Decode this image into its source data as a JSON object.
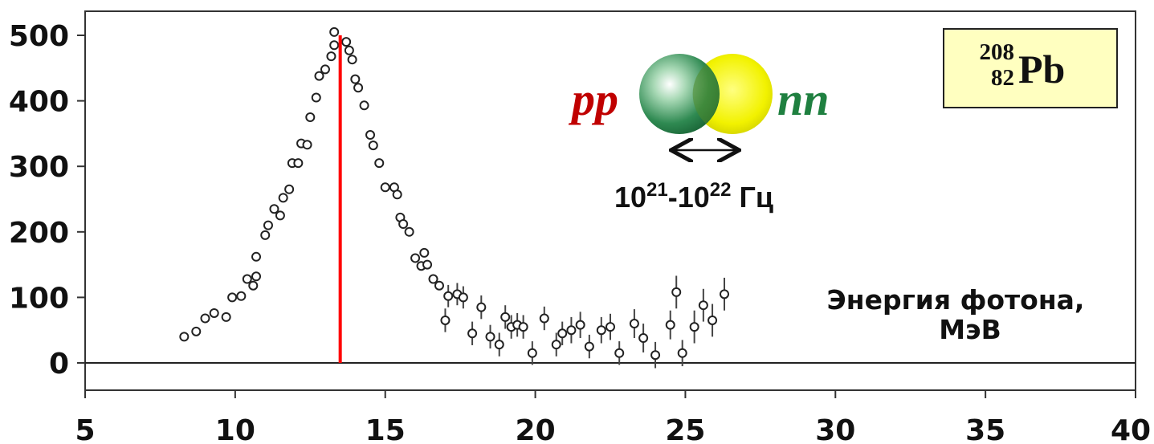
{
  "chart_data": {
    "type": "scatter",
    "x_ticks": [
      "5",
      "10",
      "15",
      "20",
      "25",
      "30",
      "35",
      "40"
    ],
    "y_ticks": [
      "0",
      "100",
      "200",
      "300",
      "400",
      "500"
    ],
    "xlim": [
      5,
      40
    ],
    "ylim": [
      -35,
      535
    ],
    "xlabel_line1": "Энергия фотона,",
    "xlabel_line2": "МэВ",
    "peak_line": {
      "x": 13.5,
      "y": 500,
      "color": "#ff0000"
    },
    "points": [
      {
        "x": 8.3,
        "y": 40,
        "err": 0
      },
      {
        "x": 8.7,
        "y": 48,
        "err": 0
      },
      {
        "x": 9.0,
        "y": 68,
        "err": 0
      },
      {
        "x": 9.3,
        "y": 76,
        "err": 0
      },
      {
        "x": 9.7,
        "y": 70,
        "err": 0
      },
      {
        "x": 9.9,
        "y": 100,
        "err": 0
      },
      {
        "x": 10.2,
        "y": 102,
        "err": 0
      },
      {
        "x": 10.4,
        "y": 128,
        "err": 0
      },
      {
        "x": 10.6,
        "y": 118,
        "err": 0
      },
      {
        "x": 10.7,
        "y": 162,
        "err": 0
      },
      {
        "x": 10.7,
        "y": 132,
        "err": 0
      },
      {
        "x": 11.0,
        "y": 195,
        "err": 0
      },
      {
        "x": 11.1,
        "y": 210,
        "err": 0
      },
      {
        "x": 11.3,
        "y": 235,
        "err": 0
      },
      {
        "x": 11.5,
        "y": 225,
        "err": 0
      },
      {
        "x": 11.6,
        "y": 252,
        "err": 0
      },
      {
        "x": 11.8,
        "y": 265,
        "err": 0
      },
      {
        "x": 11.9,
        "y": 305,
        "err": 0
      },
      {
        "x": 12.1,
        "y": 305,
        "err": 0
      },
      {
        "x": 12.2,
        "y": 335,
        "err": 0
      },
      {
        "x": 12.4,
        "y": 333,
        "err": 0
      },
      {
        "x": 12.5,
        "y": 375,
        "err": 0
      },
      {
        "x": 12.7,
        "y": 405,
        "err": 0
      },
      {
        "x": 12.8,
        "y": 438,
        "err": 0
      },
      {
        "x": 13.0,
        "y": 448,
        "err": 0
      },
      {
        "x": 13.2,
        "y": 468,
        "err": 0
      },
      {
        "x": 13.3,
        "y": 505,
        "err": 0
      },
      {
        "x": 13.3,
        "y": 485,
        "err": 0
      },
      {
        "x": 13.7,
        "y": 490,
        "err": 0
      },
      {
        "x": 13.8,
        "y": 477,
        "err": 0
      },
      {
        "x": 13.9,
        "y": 463,
        "err": 0
      },
      {
        "x": 14.0,
        "y": 433,
        "err": 0
      },
      {
        "x": 14.1,
        "y": 420,
        "err": 0
      },
      {
        "x": 14.3,
        "y": 393,
        "err": 0
      },
      {
        "x": 14.5,
        "y": 348,
        "err": 0
      },
      {
        "x": 14.6,
        "y": 332,
        "err": 0
      },
      {
        "x": 14.8,
        "y": 305,
        "err": 0
      },
      {
        "x": 15.0,
        "y": 268,
        "err": 0
      },
      {
        "x": 15.3,
        "y": 268,
        "err": 0
      },
      {
        "x": 15.4,
        "y": 257,
        "err": 0
      },
      {
        "x": 15.5,
        "y": 222,
        "err": 0
      },
      {
        "x": 15.6,
        "y": 212,
        "err": 0
      },
      {
        "x": 15.8,
        "y": 200,
        "err": 0
      },
      {
        "x": 16.0,
        "y": 160,
        "err": 0
      },
      {
        "x": 16.2,
        "y": 148,
        "err": 0
      },
      {
        "x": 16.3,
        "y": 168,
        "err": 0
      },
      {
        "x": 16.4,
        "y": 150,
        "err": 0
      },
      {
        "x": 16.6,
        "y": 128,
        "err": 0
      },
      {
        "x": 16.8,
        "y": 118,
        "err": 0
      },
      {
        "x": 17.0,
        "y": 65,
        "err": 18
      },
      {
        "x": 17.1,
        "y": 102,
        "err": 17
      },
      {
        "x": 17.4,
        "y": 105,
        "err": 17
      },
      {
        "x": 17.6,
        "y": 100,
        "err": 17
      },
      {
        "x": 17.9,
        "y": 45,
        "err": 18
      },
      {
        "x": 18.2,
        "y": 85,
        "err": 18
      },
      {
        "x": 18.5,
        "y": 40,
        "err": 18
      },
      {
        "x": 18.8,
        "y": 28,
        "err": 18
      },
      {
        "x": 19.0,
        "y": 70,
        "err": 18
      },
      {
        "x": 19.2,
        "y": 55,
        "err": 18
      },
      {
        "x": 19.4,
        "y": 58,
        "err": 18
      },
      {
        "x": 19.6,
        "y": 55,
        "err": 18
      },
      {
        "x": 19.9,
        "y": 15,
        "err": 18
      },
      {
        "x": 20.3,
        "y": 68,
        "err": 18
      },
      {
        "x": 20.7,
        "y": 28,
        "err": 18
      },
      {
        "x": 20.9,
        "y": 45,
        "err": 18
      },
      {
        "x": 21.2,
        "y": 50,
        "err": 20
      },
      {
        "x": 21.5,
        "y": 58,
        "err": 20
      },
      {
        "x": 21.8,
        "y": 25,
        "err": 18
      },
      {
        "x": 22.2,
        "y": 50,
        "err": 20
      },
      {
        "x": 22.5,
        "y": 55,
        "err": 20
      },
      {
        "x": 22.8,
        "y": 15,
        "err": 18
      },
      {
        "x": 23.3,
        "y": 60,
        "err": 22
      },
      {
        "x": 23.6,
        "y": 38,
        "err": 22
      },
      {
        "x": 24.0,
        "y": 12,
        "err": 20
      },
      {
        "x": 24.5,
        "y": 58,
        "err": 22
      },
      {
        "x": 24.7,
        "y": 108,
        "err": 25
      },
      {
        "x": 24.9,
        "y": 15,
        "err": 20
      },
      {
        "x": 25.3,
        "y": 55,
        "err": 25
      },
      {
        "x": 25.6,
        "y": 88,
        "err": 25
      },
      {
        "x": 25.9,
        "y": 65,
        "err": 25
      },
      {
        "x": 26.3,
        "y": 105,
        "err": 25
      }
    ]
  },
  "annotation": {
    "pp_label": "pp",
    "nn_label": "nn",
    "pp_color": "#c00000",
    "nn_color": "#1f8040",
    "freq_base1": "10",
    "freq_exp1": "21",
    "freq_dash": "-10",
    "freq_exp2": "22",
    "freq_unit": " Гц"
  },
  "nucleus": {
    "mass_number": "208",
    "atomic_number": "82",
    "symbol": "Pb",
    "box_color": "#ffffc0"
  }
}
